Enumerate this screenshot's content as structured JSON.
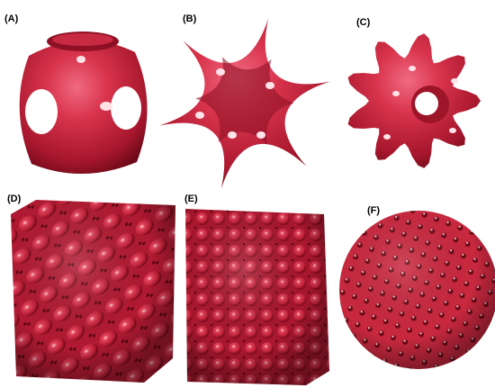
{
  "panels": [
    {
      "label": "(A)"
    },
    {
      "label": "(B)"
    },
    {
      "label": "(C)"
    },
    {
      "label": "(D)"
    },
    {
      "label": "(E)"
    },
    {
      "label": "(F)"
    }
  ]
}
